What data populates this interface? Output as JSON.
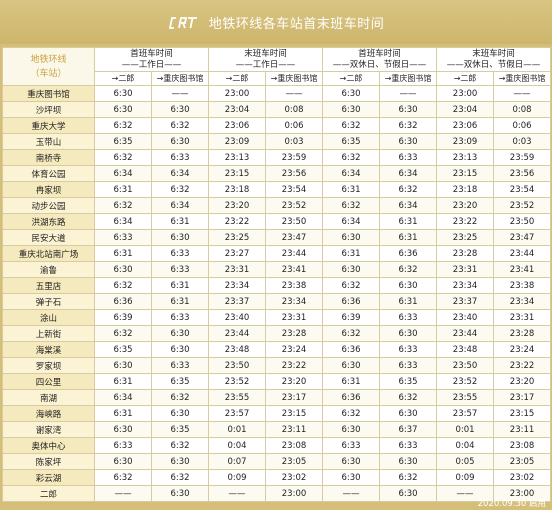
{
  "header": {
    "title": "地铁环线各车站首末班车时间"
  },
  "table": {
    "corner_line1": "地铁环线",
    "corner_line2": "（车站）",
    "groups": [
      {
        "line1": "首班车时间",
        "line2": "——工作日——"
      },
      {
        "line1": "末班车时间",
        "line2": "——工作日——"
      },
      {
        "line1": "首班车时间",
        "line2": "——双休日、节假日——"
      },
      {
        "line1": "末班车时间",
        "line2": "——双休日、节假日——"
      }
    ],
    "directions": [
      "→二郎",
      "→重庆图书馆",
      "→二郎",
      "→重庆图书馆",
      "→二郎",
      "→重庆图书馆",
      "→二郎",
      "→重庆图书馆"
    ],
    "rows": [
      {
        "station": "重庆图书馆",
        "times": [
          "6:30",
          "——",
          "23:00",
          "——",
          "6:30",
          "——",
          "23:00",
          "——"
        ]
      },
      {
        "station": "沙坪坝",
        "times": [
          "6:30",
          "6:30",
          "23:04",
          "0:08",
          "6:30",
          "6:30",
          "23:04",
          "0:08"
        ]
      },
      {
        "station": "重庆大学",
        "times": [
          "6:32",
          "6:32",
          "23:06",
          "0:06",
          "6:32",
          "6:32",
          "23:06",
          "0:06"
        ]
      },
      {
        "station": "玉带山",
        "times": [
          "6:35",
          "6:30",
          "23:09",
          "0:03",
          "6:35",
          "6:30",
          "23:09",
          "0:03"
        ]
      },
      {
        "station": "南桥寺",
        "times": [
          "6:32",
          "6:33",
          "23:13",
          "23:59",
          "6:32",
          "6:33",
          "23:13",
          "23:59"
        ]
      },
      {
        "station": "体育公园",
        "times": [
          "6:34",
          "6:34",
          "23:15",
          "23:56",
          "6:34",
          "6:34",
          "23:15",
          "23:56"
        ]
      },
      {
        "station": "冉家坝",
        "times": [
          "6:31",
          "6:32",
          "23:18",
          "23:54",
          "6:31",
          "6:32",
          "23:18",
          "23:54"
        ]
      },
      {
        "station": "动步公园",
        "times": [
          "6:32",
          "6:34",
          "23:20",
          "23:52",
          "6:32",
          "6:34",
          "23:20",
          "23:52"
        ]
      },
      {
        "station": "洪湖东路",
        "times": [
          "6:34",
          "6:31",
          "23:22",
          "23:50",
          "6:34",
          "6:31",
          "23:22",
          "23:50"
        ]
      },
      {
        "station": "民安大道",
        "times": [
          "6:33",
          "6:30",
          "23:25",
          "23:47",
          "6:30",
          "6:31",
          "23:25",
          "23:47"
        ]
      },
      {
        "station": "重庆北站南广场",
        "times": [
          "6:31",
          "6:33",
          "23:27",
          "23:44",
          "6:31",
          "6:36",
          "23:28",
          "23:44"
        ]
      },
      {
        "station": "渝鲁",
        "times": [
          "6:30",
          "6:33",
          "23:31",
          "23:41",
          "6:30",
          "6:32",
          "23:31",
          "23:41"
        ]
      },
      {
        "station": "五里店",
        "times": [
          "6:32",
          "6:31",
          "23:34",
          "23:38",
          "6:32",
          "6:30",
          "23:34",
          "23:38"
        ]
      },
      {
        "station": "弹子石",
        "times": [
          "6:36",
          "6:31",
          "23:37",
          "23:34",
          "6:36",
          "6:31",
          "23:37",
          "23:34"
        ]
      },
      {
        "station": "涂山",
        "times": [
          "6:39",
          "6:33",
          "23:40",
          "23:31",
          "6:39",
          "6:33",
          "23:40",
          "23:31"
        ]
      },
      {
        "station": "上新街",
        "times": [
          "6:32",
          "6:30",
          "23:44",
          "23:28",
          "6:32",
          "6:30",
          "23:44",
          "23:28"
        ]
      },
      {
        "station": "海棠溪",
        "times": [
          "6:35",
          "6:30",
          "23:48",
          "23:24",
          "6:36",
          "6:33",
          "23:48",
          "23:24"
        ]
      },
      {
        "station": "罗家坝",
        "times": [
          "6:30",
          "6:33",
          "23:50",
          "23:22",
          "6:30",
          "6:33",
          "23:50",
          "23:22"
        ]
      },
      {
        "station": "四公里",
        "times": [
          "6:31",
          "6:35",
          "23:52",
          "23:20",
          "6:31",
          "6:35",
          "23:52",
          "23:20"
        ]
      },
      {
        "station": "南湖",
        "times": [
          "6:34",
          "6:32",
          "23:55",
          "23:17",
          "6:36",
          "6:32",
          "23:55",
          "23:17"
        ]
      },
      {
        "station": "海峡路",
        "times": [
          "6:31",
          "6:30",
          "23:57",
          "23:15",
          "6:32",
          "6:30",
          "23:57",
          "23:15"
        ]
      },
      {
        "station": "谢家湾",
        "times": [
          "6:30",
          "6:35",
          "0:01",
          "23:11",
          "6:30",
          "6:37",
          "0:01",
          "23:11"
        ]
      },
      {
        "station": "奥体中心",
        "times": [
          "6:33",
          "6:32",
          "0:04",
          "23:08",
          "6:33",
          "6:33",
          "0:04",
          "23:08"
        ]
      },
      {
        "station": "陈家坪",
        "times": [
          "6:30",
          "6:30",
          "0:07",
          "23:05",
          "6:30",
          "6:30",
          "0:05",
          "23:05"
        ]
      },
      {
        "station": "彩云湖",
        "times": [
          "6:32",
          "6:32",
          "0:09",
          "23:02",
          "6:30",
          "6:32",
          "0:09",
          "23:02"
        ]
      },
      {
        "station": "二郎",
        "times": [
          "——",
          "6:30",
          "——",
          "23:00",
          "——",
          "6:30",
          "——",
          "23:00"
        ]
      }
    ]
  },
  "footer": {
    "date": "2020.09.30 启用"
  },
  "colors": {
    "banner": "#d5bf78",
    "station_column": "#f3e6b3",
    "corner_text": "#c9a23f",
    "grid": "#d6cc9f"
  },
  "icons": {
    "logo": "crt-logo-icon"
  }
}
